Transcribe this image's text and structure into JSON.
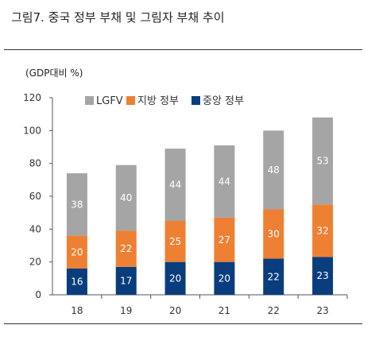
{
  "figure": {
    "title": "그림7.   중국 정부 부채 및 그림자 부채 추이"
  },
  "chart_data": {
    "type": "bar",
    "stacked": true,
    "unit_label": "(GDP대비 %)",
    "categories": [
      "18",
      "19",
      "20",
      "21",
      "22",
      "23"
    ],
    "ylim": [
      0,
      120
    ],
    "yticks": [
      0,
      20,
      40,
      60,
      80,
      100,
      120
    ],
    "grid": false,
    "legend_position": "top-left",
    "series": [
      {
        "name": "중앙 정부",
        "color": "#0a3d7d",
        "values": [
          16,
          17,
          20,
          20,
          22,
          23
        ]
      },
      {
        "name": "지방 정부",
        "color": "#ee8033",
        "values": [
          20,
          22,
          25,
          27,
          30,
          32
        ]
      },
      {
        "name": "LGFV",
        "color": "#a5a5a5",
        "values": [
          38,
          40,
          44,
          44,
          48,
          53
        ]
      }
    ],
    "legend_order": [
      "LGFV",
      "지방 정부",
      "중앙 정부"
    ]
  }
}
